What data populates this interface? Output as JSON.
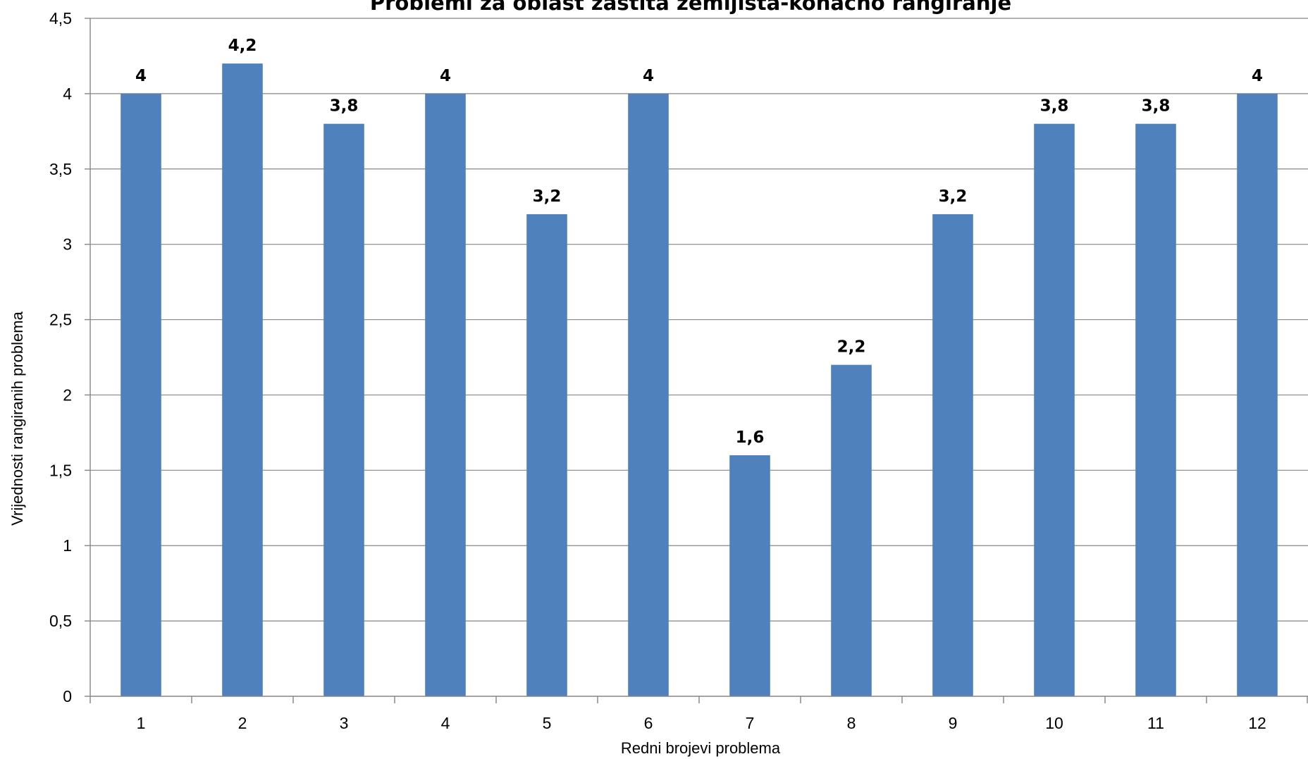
{
  "chart_data": {
    "type": "bar",
    "title": "Problemi za oblast zaštita zemljišta-konačno rangiranje",
    "xlabel": "Redni brojevi problema",
    "ylabel": "Vrijednosti rangiranih problema",
    "categories": [
      "1",
      "2",
      "3",
      "4",
      "5",
      "6",
      "7",
      "8",
      "9",
      "10",
      "11",
      "12"
    ],
    "values": [
      4,
      4.2,
      3.8,
      4,
      3.2,
      4,
      1.6,
      2.2,
      3.2,
      3.8,
      3.8,
      4
    ],
    "value_labels": [
      "4",
      "4,2",
      "3,8",
      "4",
      "3,2",
      "4",
      "1,6",
      "2,2",
      "3,2",
      "3,8",
      "3,8",
      "4"
    ],
    "ylim": [
      0,
      4.5
    ],
    "y_ticks": [
      0,
      0.5,
      1,
      1.5,
      2,
      2.5,
      3,
      3.5,
      4,
      4.5
    ],
    "y_tick_labels": [
      "0",
      "0,5",
      "1",
      "1,5",
      "2",
      "2,5",
      "3",
      "3,5",
      "4",
      "4,5"
    ],
    "grid": true,
    "legend": "none",
    "colors": {
      "bar": "#4F81BD",
      "grid": "#868686",
      "text": "#000000"
    }
  }
}
